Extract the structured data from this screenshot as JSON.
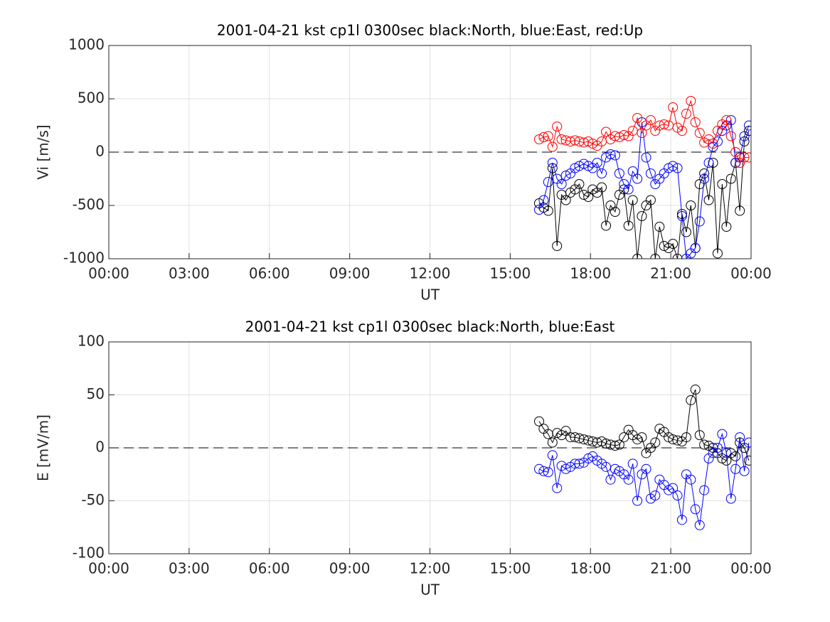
{
  "chart_data": [
    {
      "type": "line",
      "title": "2001-04-21 kst cp1l 0300sec black:North, blue:East, red:Up",
      "xlabel": "UT",
      "ylabel": "Vi [m/s]",
      "grid": true,
      "xlim": [
        0,
        24
      ],
      "xticks": [
        {
          "value": 0,
          "label": "00:00"
        },
        {
          "value": 3,
          "label": "03:00"
        },
        {
          "value": 6,
          "label": "06:00"
        },
        {
          "value": 9,
          "label": "09:00"
        },
        {
          "value": 12,
          "label": "12:00"
        },
        {
          "value": 15,
          "label": "15:00"
        },
        {
          "value": 18,
          "label": "18:00"
        },
        {
          "value": 21,
          "label": "21:00"
        },
        {
          "value": 24,
          "label": "00:00"
        }
      ],
      "ylim": [
        -1000,
        1000
      ],
      "yticks": [
        -1000,
        -500,
        0,
        500,
        1000
      ],
      "x": [
        16.08,
        16.25,
        16.42,
        16.58,
        16.75,
        16.92,
        17.08,
        17.25,
        17.42,
        17.58,
        17.75,
        17.92,
        18.08,
        18.25,
        18.42,
        18.58,
        18.75,
        18.92,
        19.08,
        19.25,
        19.42,
        19.58,
        19.75,
        19.92,
        20.08,
        20.25,
        20.42,
        20.58,
        20.75,
        20.92,
        21.08,
        21.25,
        21.42,
        21.58,
        21.75,
        21.92,
        22.08,
        22.25,
        22.42,
        22.58,
        22.75,
        22.92,
        23.08,
        23.25,
        23.42,
        23.58,
        23.75,
        23.92
      ],
      "series": [
        {
          "name": "North",
          "color": "#000000",
          "values": [
            -480,
            -520,
            -550,
            -150,
            -880,
            -400,
            -450,
            -380,
            -350,
            -300,
            -400,
            -420,
            -350,
            -380,
            -330,
            -690,
            -500,
            -560,
            -400,
            -350,
            -690,
            -450,
            -1000,
            -600,
            -500,
            -450,
            -1000,
            -700,
            -880,
            -900,
            -860,
            -1000,
            -580,
            -750,
            -500,
            -900,
            -300,
            -200,
            -450,
            -100,
            -950,
            -300,
            -700,
            -250,
            -100,
            -550,
            100,
            200
          ]
        },
        {
          "name": "East",
          "color": "#0000ff",
          "values": [
            -540,
            -450,
            -280,
            -100,
            -250,
            -300,
            -220,
            -200,
            -150,
            -130,
            -110,
            -130,
            -150,
            -100,
            -200,
            -50,
            -20,
            -30,
            -200,
            -300,
            -350,
            -180,
            -250,
            280,
            -50,
            -200,
            -300,
            -250,
            -200,
            -150,
            -130,
            -150,
            -600,
            -1000,
            -950,
            -900,
            -650,
            -250,
            -100,
            50,
            100,
            200,
            250,
            300,
            -100,
            -50,
            150,
            250
          ]
        },
        {
          "name": "Up",
          "color": "#ff0000",
          "values": [
            120,
            140,
            150,
            50,
            240,
            120,
            110,
            100,
            110,
            100,
            90,
            100,
            80,
            60,
            100,
            190,
            120,
            150,
            140,
            160,
            150,
            200,
            320,
            180,
            250,
            300,
            200,
            250,
            260,
            250,
            420,
            230,
            200,
            360,
            480,
            280,
            180,
            90,
            120,
            80,
            200,
            260,
            300,
            150,
            0,
            -100,
            -50,
            -50
          ]
        }
      ]
    },
    {
      "type": "line",
      "title": "2001-04-21 kst cp1l 0300sec black:North, blue:East",
      "xlabel": "UT",
      "ylabel": "E [mV/m]",
      "grid": true,
      "xlim": [
        0,
        24
      ],
      "xticks": [
        {
          "value": 0,
          "label": "00:00"
        },
        {
          "value": 3,
          "label": "03:00"
        },
        {
          "value": 6,
          "label": "06:00"
        },
        {
          "value": 9,
          "label": "09:00"
        },
        {
          "value": 12,
          "label": "12:00"
        },
        {
          "value": 15,
          "label": "15:00"
        },
        {
          "value": 18,
          "label": "18:00"
        },
        {
          "value": 21,
          "label": "21:00"
        },
        {
          "value": 24,
          "label": "00:00"
        }
      ],
      "ylim": [
        -100,
        100
      ],
      "yticks": [
        -100,
        -50,
        0,
        50,
        100
      ],
      "x": [
        16.08,
        16.25,
        16.42,
        16.58,
        16.75,
        16.92,
        17.08,
        17.25,
        17.42,
        17.58,
        17.75,
        17.92,
        18.08,
        18.25,
        18.42,
        18.58,
        18.75,
        18.92,
        19.08,
        19.25,
        19.42,
        19.58,
        19.75,
        19.92,
        20.08,
        20.25,
        20.42,
        20.58,
        20.75,
        20.92,
        21.08,
        21.25,
        21.42,
        21.58,
        21.75,
        21.92,
        22.08,
        22.25,
        22.42,
        22.58,
        22.75,
        22.92,
        23.08,
        23.25,
        23.42,
        23.58,
        23.75,
        23.92
      ],
      "series": [
        {
          "name": "North",
          "color": "#000000",
          "values": [
            25,
            18,
            13,
            5,
            14,
            12,
            16,
            10,
            10,
            9,
            8,
            7,
            6,
            5,
            6,
            4,
            3,
            2,
            3,
            10,
            17,
            12,
            8,
            10,
            -5,
            0,
            5,
            18,
            15,
            10,
            8,
            7,
            6,
            10,
            45,
            55,
            12,
            3,
            2,
            0,
            -5,
            -10,
            -12,
            -5,
            -8,
            5,
            0,
            -12
          ]
        },
        {
          "name": "East",
          "color": "#0000ff",
          "values": [
            -20,
            -22,
            -23,
            -7,
            -38,
            -17,
            -20,
            -18,
            -15,
            -15,
            -14,
            -10,
            -8,
            -12,
            -15,
            -18,
            -30,
            -20,
            -22,
            -25,
            -30,
            -15,
            -50,
            -25,
            -20,
            -48,
            -45,
            -30,
            -35,
            -40,
            -38,
            -45,
            -68,
            -25,
            -30,
            -58,
            -73,
            -40,
            -10,
            -5,
            0,
            13,
            -5,
            -48,
            -20,
            10,
            -22,
            5
          ]
        }
      ]
    }
  ]
}
